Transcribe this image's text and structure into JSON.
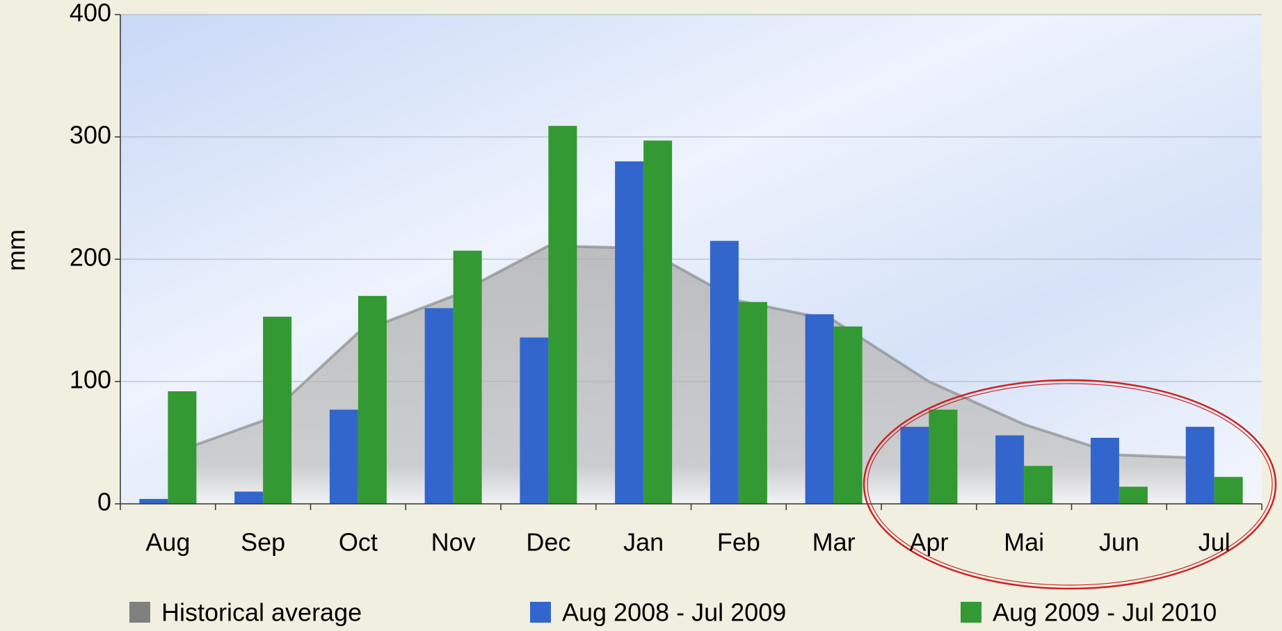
{
  "chart_data": {
    "type": "bar",
    "y_label": "mm",
    "categories": [
      "Aug",
      "Sep",
      "Oct",
      "Nov",
      "Dec",
      "Jan",
      "Feb",
      "Mar",
      "Apr",
      "Mai",
      "Jun",
      "Jul"
    ],
    "series": [
      {
        "name": "Historical average",
        "color": "#808080",
        "kind": "area",
        "values": [
          40,
          68,
          140,
          170,
          211,
          209,
          166,
          150,
          100,
          65,
          40,
          37
        ]
      },
      {
        "name": "Aug 2008 - Jul 2009",
        "color": "#3366cc",
        "kind": "bar",
        "values": [
          4,
          10,
          77,
          160,
          136,
          280,
          215,
          155,
          63,
          56,
          54,
          63
        ]
      },
      {
        "name": "Aug 2009 - Jul 2010",
        "color": "#339933",
        "kind": "bar",
        "values": [
          92,
          153,
          170,
          207,
          309,
          297,
          165,
          145,
          77,
          31,
          14,
          22
        ]
      }
    ],
    "ylim": [
      0,
      400
    ],
    "yticks": [
      0,
      100,
      200,
      300,
      400
    ],
    "grid": true
  }
}
